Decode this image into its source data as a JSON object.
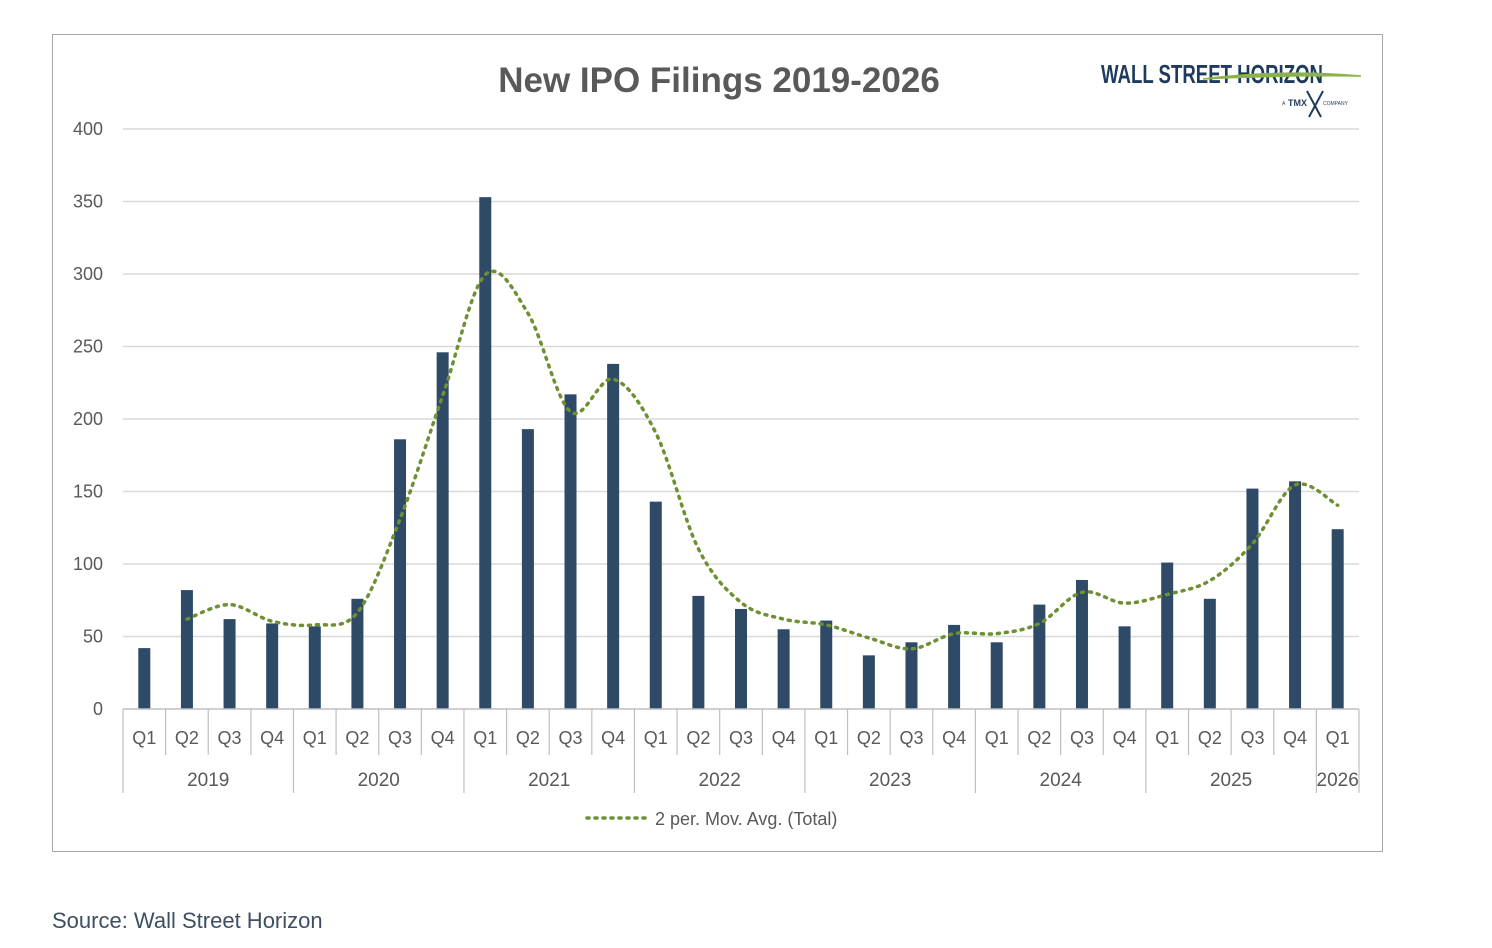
{
  "source": "Source: Wall Street Horizon",
  "logo": {
    "main": "WALL STREET HORIZON",
    "prefix": "A",
    "tmx": "TMX",
    "company": "COMPANY"
  },
  "colors": {
    "bar": "#2e4a66",
    "moving_avg": "#6e8f32",
    "grid": "#d9d9d9",
    "axis_text": "#595959"
  },
  "chart_data": {
    "type": "bar",
    "title": "New IPO Filings 2019-2026",
    "xlabel": "",
    "ylabel": "",
    "ylim": [
      0,
      400
    ],
    "yticks": [
      0,
      50,
      100,
      150,
      200,
      250,
      300,
      350,
      400
    ],
    "grid": true,
    "legend_position": "bottom",
    "categories": [
      "Q1",
      "Q2",
      "Q3",
      "Q4",
      "Q1",
      "Q2",
      "Q3",
      "Q4",
      "Q1",
      "Q2",
      "Q3",
      "Q4",
      "Q1",
      "Q2",
      "Q3",
      "Q4",
      "Q1",
      "Q2",
      "Q3",
      "Q4",
      "Q1",
      "Q2",
      "Q3",
      "Q4",
      "Q1",
      "Q2",
      "Q3",
      "Q4",
      "Q1"
    ],
    "groups": [
      {
        "label": "2019",
        "count": 4
      },
      {
        "label": "2020",
        "count": 4
      },
      {
        "label": "2021",
        "count": 4
      },
      {
        "label": "2022",
        "count": 4
      },
      {
        "label": "2023",
        "count": 4
      },
      {
        "label": "2024",
        "count": 4
      },
      {
        "label": "2025",
        "count": 4
      },
      {
        "label": "2026",
        "count": 1
      }
    ],
    "series": [
      {
        "values": [
          42,
          82,
          62,
          59,
          57,
          76,
          186,
          246,
          353,
          193,
          217,
          238,
          143,
          78,
          69,
          55,
          61,
          37,
          46,
          58,
          46,
          72,
          89,
          57,
          101,
          76,
          152,
          157,
          124
        ]
      },
      {
        "name": "2 per. Mov. Avg. (Total)",
        "type": "line",
        "style": "dotted",
        "values": [
          null,
          62,
          72,
          60.5,
          58,
          66.5,
          131,
          216,
          299.5,
          273,
          205,
          227.5,
          190.5,
          110.5,
          73.5,
          62,
          58,
          49,
          41.5,
          52,
          52,
          59,
          80.5,
          73,
          79,
          88.5,
          114,
          154.5,
          140.5
        ]
      }
    ]
  }
}
